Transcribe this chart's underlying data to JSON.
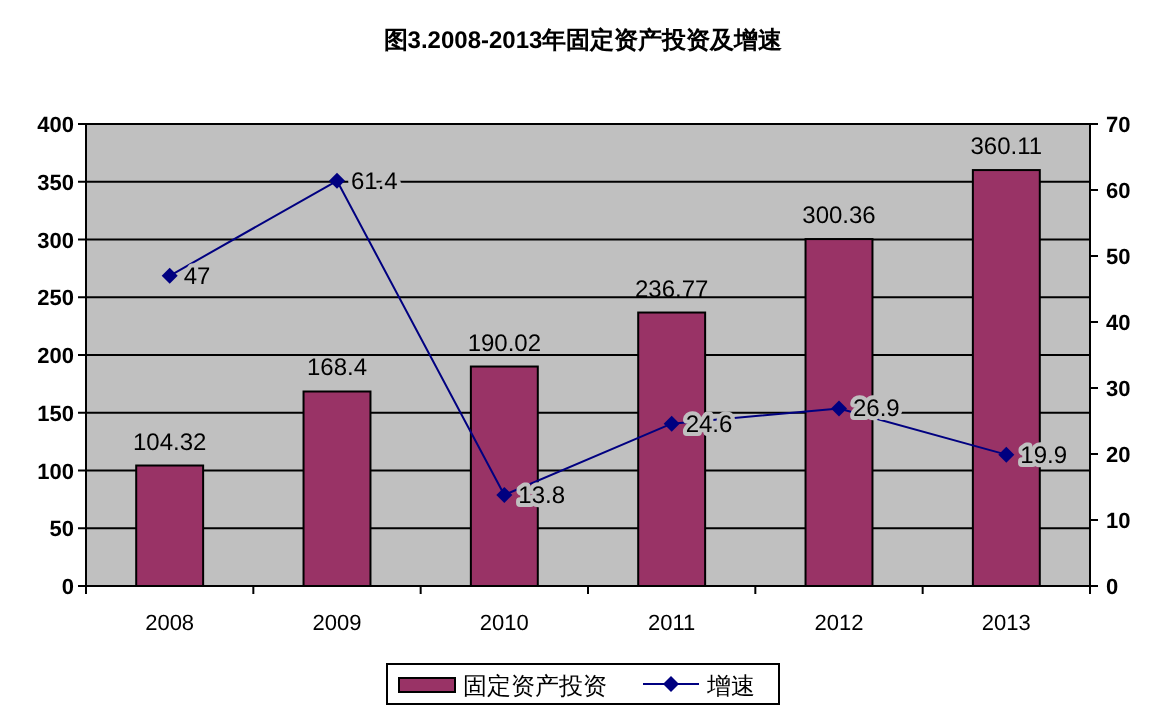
{
  "chart_data": {
    "type": "bar",
    "title": "图3.2008-2013年固定资产投资及增速",
    "categories": [
      "2008",
      "2009",
      "2010",
      "2011",
      "2012",
      "2013"
    ],
    "series": [
      {
        "name": "固定资产投资",
        "color": "#993366",
        "values": [
          104.32,
          168.4,
          190.02,
          236.77,
          300.36,
          360.11
        ]
      },
      {
        "name": "增速",
        "type": "line",
        "axis": "y2",
        "color": "#000080",
        "marker": "diamond",
        "values": [
          47,
          61.4,
          13.8,
          24.6,
          26.9,
          19.9
        ]
      }
    ],
    "ylim": [
      0,
      400
    ],
    "yticks": [
      0,
      50,
      100,
      150,
      200,
      250,
      300,
      350,
      400
    ],
    "y2lim": [
      0,
      70
    ],
    "y2ticks": [
      0,
      10,
      20,
      30,
      40,
      50,
      60,
      70
    ],
    "grid": "y",
    "legend": "bottom",
    "data_labels": true
  }
}
